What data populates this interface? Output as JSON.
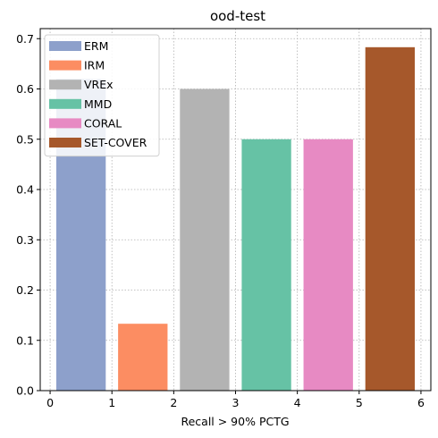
{
  "chart_data": {
    "type": "bar",
    "title": "ood-test",
    "xlabel": "Recall > 90% PCTG",
    "ylabel": "",
    "xlim": [
      -0.16,
      6.16
    ],
    "ylim": [
      0,
      0.72
    ],
    "xticks": [
      0,
      1,
      2,
      3,
      4,
      5,
      6
    ],
    "yticks": [
      0.0,
      0.1,
      0.2,
      0.3,
      0.4,
      0.5,
      0.6,
      0.7
    ],
    "xtick_labels": [
      "0",
      "1",
      "2",
      "3",
      "4",
      "5",
      "6"
    ],
    "ytick_labels": [
      "0.0",
      "0.1",
      "0.2",
      "0.3",
      "0.4",
      "0.5",
      "0.6",
      "0.7"
    ],
    "bar_width": 0.8,
    "grid": true,
    "legend_position": "top-left",
    "series": [
      {
        "name": "ERM",
        "x": 0.5,
        "value": 0.62,
        "color": "#8da0cb"
      },
      {
        "name": "IRM",
        "x": 1.5,
        "value": 0.133,
        "color": "#fc8d62"
      },
      {
        "name": "VREx",
        "x": 2.5,
        "value": 0.6,
        "color": "#b3b3b3"
      },
      {
        "name": "MMD",
        "x": 3.5,
        "value": 0.5,
        "color": "#66c2a5"
      },
      {
        "name": "CORAL",
        "x": 4.5,
        "value": 0.5,
        "color": "#e78ac3"
      },
      {
        "name": "SET-COVER",
        "x": 5.5,
        "value": 0.683,
        "color": "#a6582b"
      }
    ]
  }
}
